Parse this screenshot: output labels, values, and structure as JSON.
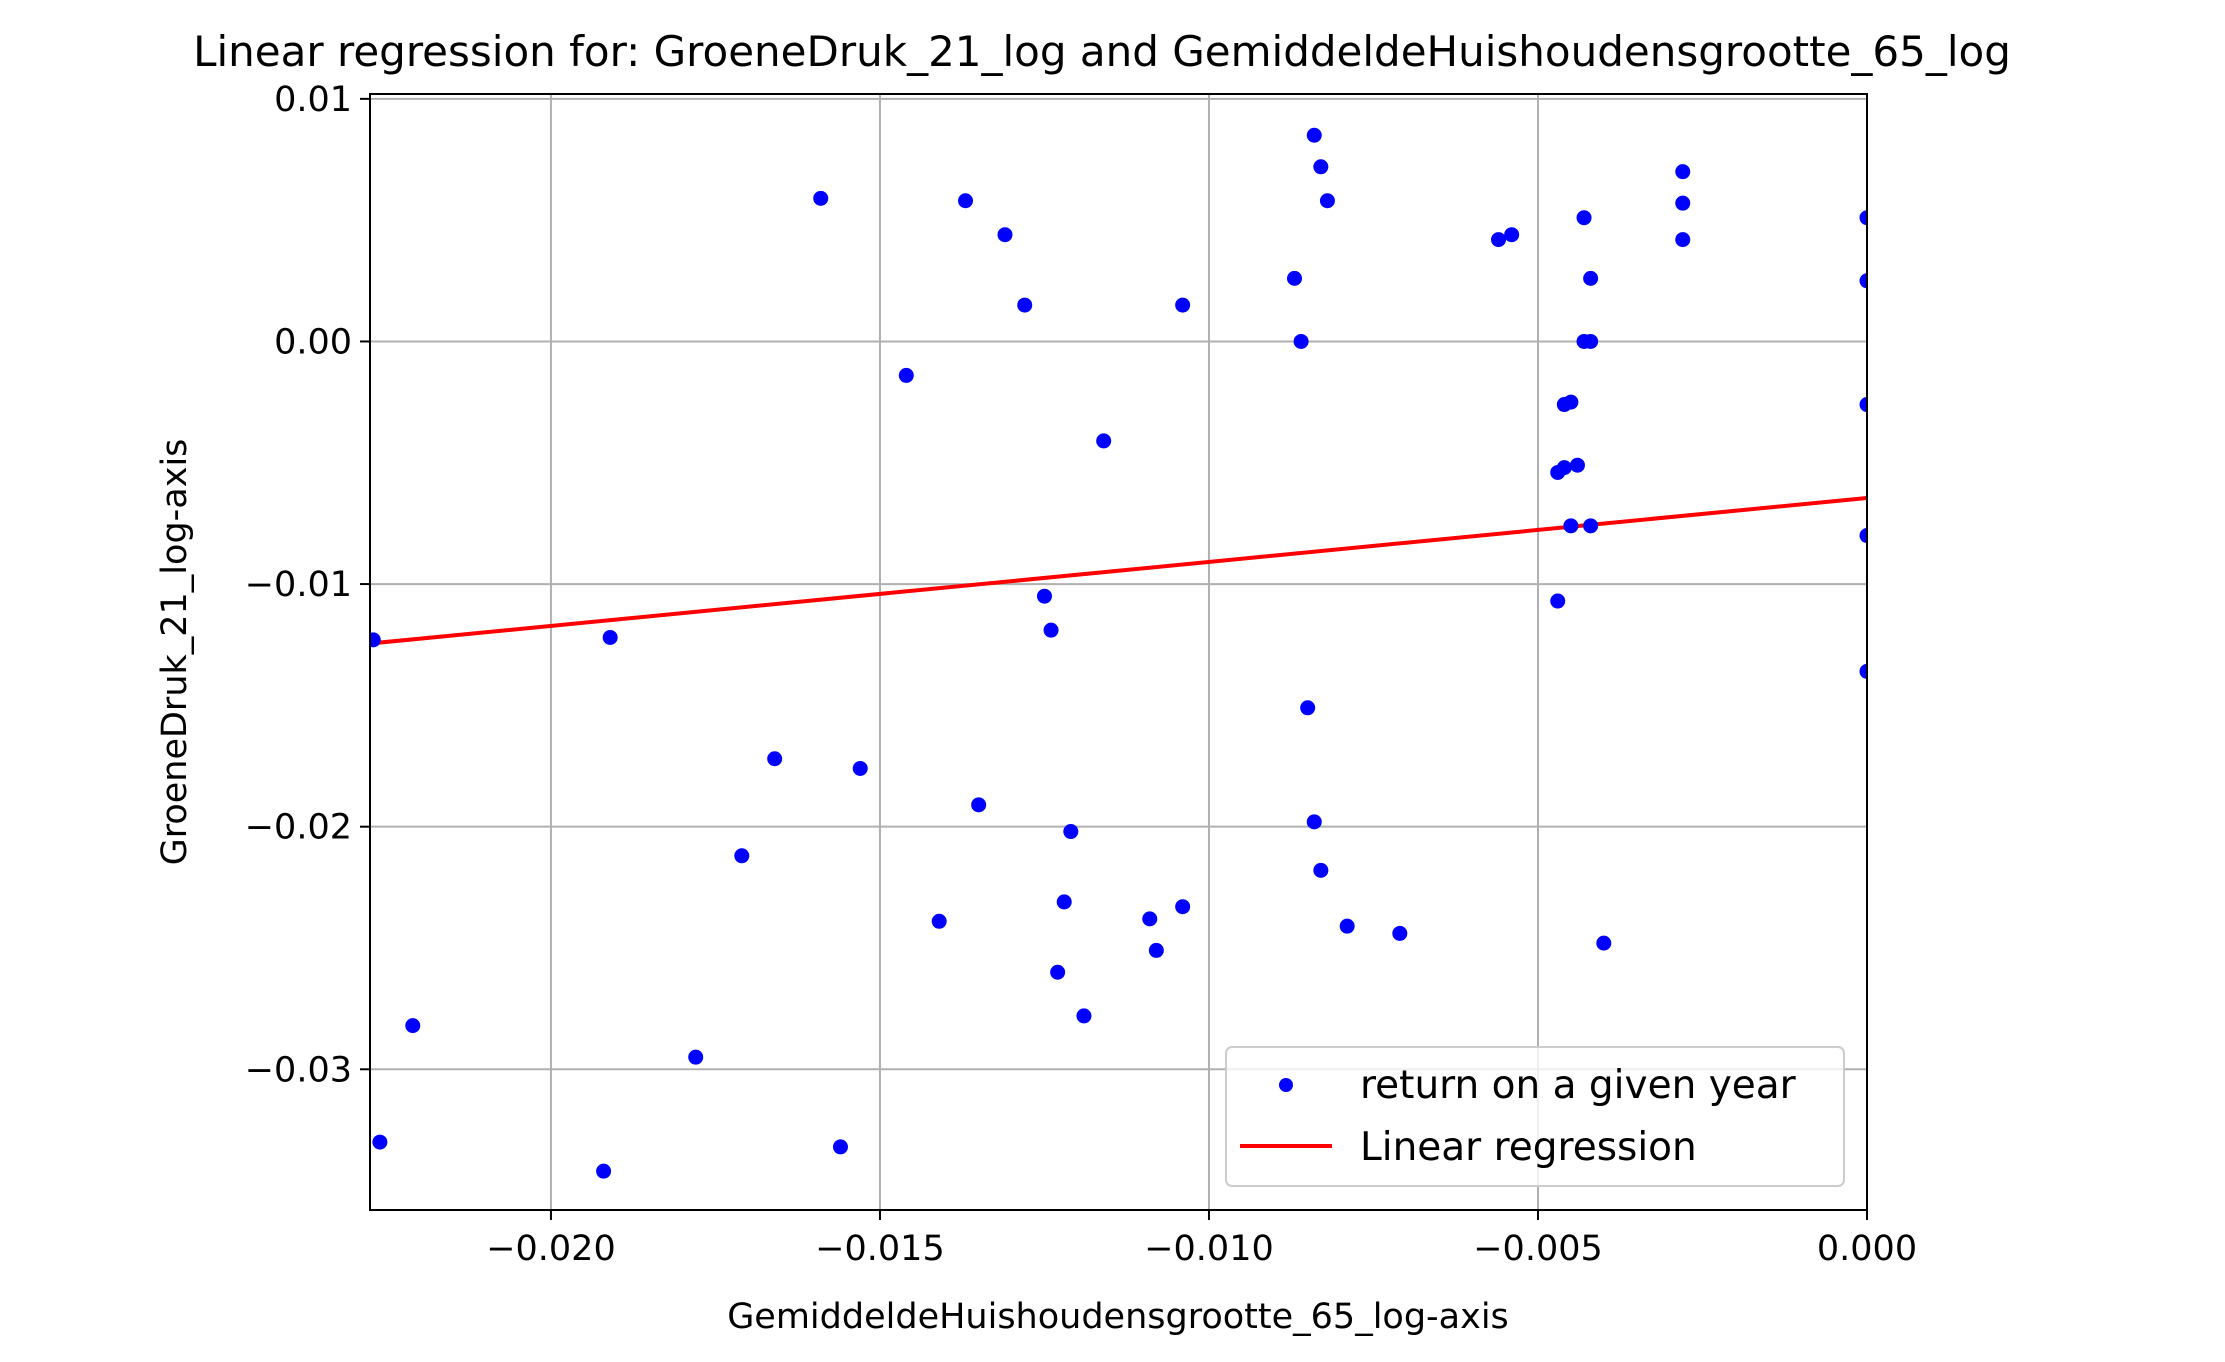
{
  "chart_data": {
    "type": "scatter",
    "title": "Linear regression for: GroeneDruk_21_log and GemiddeldeHuishoudensgrootte_65_log",
    "xlabel": "GemiddeldeHuishoudensgrootte_65_log-axis",
    "ylabel": "GroeneDruk_21_log-axis",
    "xlim": [
      -0.02275,
      0.0
    ],
    "ylim": [
      -0.0358,
      0.0102
    ],
    "grid": true,
    "legend_position": "lower-right",
    "x_ticks": [
      -0.02,
      -0.015,
      -0.01,
      -0.005,
      0.0
    ],
    "x_tick_labels": [
      "−0.020",
      "−0.015",
      "−0.010",
      "−0.005",
      "0.000"
    ],
    "y_ticks": [
      0.01,
      0.0,
      -0.01,
      -0.02,
      -0.03
    ],
    "y_tick_labels": [
      "0.01",
      "0.00",
      "−0.01",
      "−0.02",
      "−0.03"
    ],
    "colors": {
      "points": "#0000ff",
      "line": "#ff0000",
      "grid": "#b0b0b0"
    },
    "series": [
      {
        "name": "return on a given year",
        "kind": "scatter",
        "color": "#0000ff",
        "points": [
          [
            -0.0227,
            -0.0123
          ],
          [
            -0.0226,
            -0.033
          ],
          [
            -0.0221,
            -0.0282
          ],
          [
            -0.0191,
            -0.0122
          ],
          [
            -0.0192,
            -0.0342
          ],
          [
            -0.0178,
            -0.0295
          ],
          [
            -0.0171,
            -0.0212
          ],
          [
            -0.0166,
            -0.0172
          ],
          [
            -0.0159,
            0.0059
          ],
          [
            -0.0156,
            -0.0332
          ],
          [
            -0.0153,
            -0.0176
          ],
          [
            -0.0146,
            -0.0014
          ],
          [
            -0.0141,
            -0.0239
          ],
          [
            -0.0137,
            0.0058
          ],
          [
            -0.0135,
            -0.0191
          ],
          [
            -0.0131,
            0.0044
          ],
          [
            -0.0128,
            0.0015
          ],
          [
            -0.0125,
            -0.0105
          ],
          [
            -0.0124,
            -0.0119
          ],
          [
            -0.0123,
            -0.026
          ],
          [
            -0.0122,
            -0.0231
          ],
          [
            -0.0121,
            -0.0202
          ],
          [
            -0.0119,
            -0.0278
          ],
          [
            -0.0116,
            -0.0041
          ],
          [
            -0.0109,
            -0.0238
          ],
          [
            -0.0108,
            -0.0251
          ],
          [
            -0.0104,
            -0.0233
          ],
          [
            -0.0104,
            0.0015
          ],
          [
            -0.0087,
            0.0026
          ],
          [
            -0.0086,
            0.0
          ],
          [
            -0.0085,
            -0.0151
          ],
          [
            -0.0084,
            0.0085
          ],
          [
            -0.0084,
            -0.0198
          ],
          [
            -0.0083,
            0.0072
          ],
          [
            -0.0083,
            -0.0218
          ],
          [
            -0.0082,
            0.0058
          ],
          [
            -0.0079,
            -0.0241
          ],
          [
            -0.0071,
            -0.0244
          ],
          [
            -0.0056,
            0.0042
          ],
          [
            -0.0054,
            0.0044
          ],
          [
            -0.0047,
            -0.0107
          ],
          [
            -0.0047,
            -0.0054
          ],
          [
            -0.0046,
            -0.0052
          ],
          [
            -0.0046,
            -0.0026
          ],
          [
            -0.0045,
            -0.0076
          ],
          [
            -0.0045,
            -0.0025
          ],
          [
            -0.0044,
            -0.0051
          ],
          [
            -0.0043,
            0.0051
          ],
          [
            -0.0043,
            0.0
          ],
          [
            -0.0042,
            0.0026
          ],
          [
            -0.0042,
            0.0
          ],
          [
            -0.0042,
            -0.0076
          ],
          [
            -0.004,
            -0.0248
          ],
          [
            -0.0028,
            0.007
          ],
          [
            -0.0028,
            0.0057
          ],
          [
            -0.0028,
            0.0042
          ],
          [
            0.0,
            0.0051
          ],
          [
            0.0,
            0.0025
          ],
          [
            0.0,
            -0.0026
          ],
          [
            0.0,
            -0.008
          ],
          [
            0.0,
            -0.0136
          ]
        ]
      },
      {
        "name": "Linear regression",
        "kind": "line",
        "color": "#ff0000",
        "points": [
          [
            -0.02275,
            -0.01245
          ],
          [
            0.0,
            -0.00645
          ]
        ]
      }
    ]
  }
}
